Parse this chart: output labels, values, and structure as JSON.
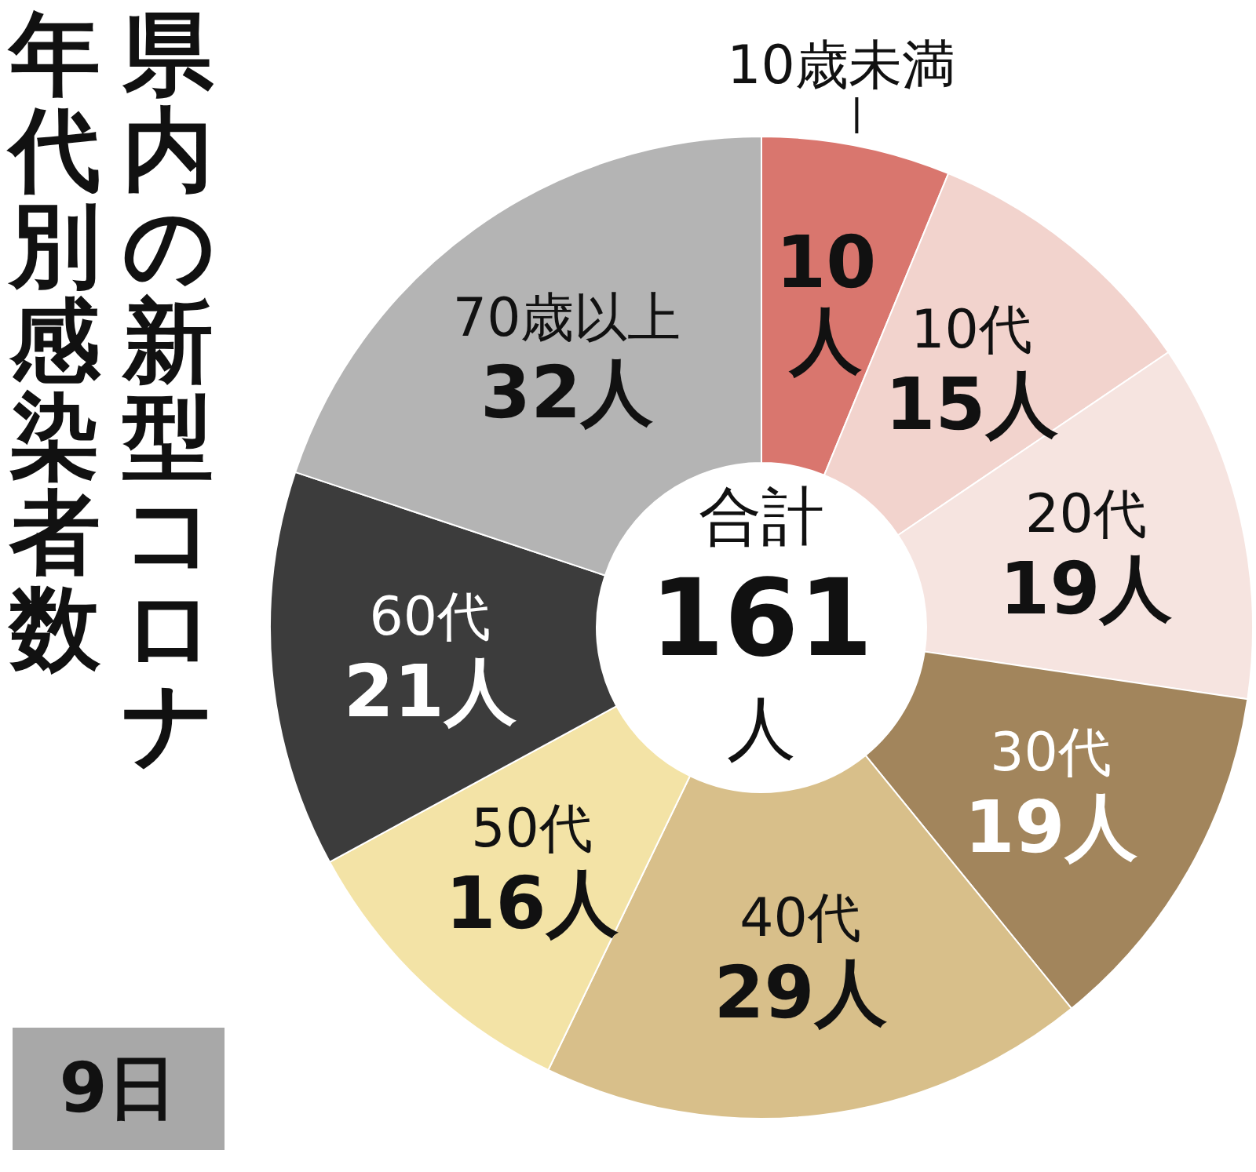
{
  "chart_data": {
    "type": "donut",
    "title": "県内の新型コロナ",
    "subtitle": "年代別感染者数",
    "categories": [
      "10歳未満",
      "10代",
      "20代",
      "30代",
      "40代",
      "50代",
      "60代",
      "70歳以上"
    ],
    "values": [
      10,
      15,
      19,
      19,
      29,
      16,
      21,
      32
    ],
    "value_labels": [
      "10人",
      "15人",
      "19人",
      "19人",
      "29人",
      "16人",
      "21人",
      "32人"
    ],
    "colors": [
      "#d9766e",
      "#f2d3cd",
      "#f6e4e0",
      "#a2855c",
      "#d8bf8a",
      "#f3e3a6",
      "#3c3c3c",
      "#b4b4b4"
    ],
    "annotations": [
      "合計",
      "161",
      "人",
      "9日"
    ],
    "legend": false
  }
}
